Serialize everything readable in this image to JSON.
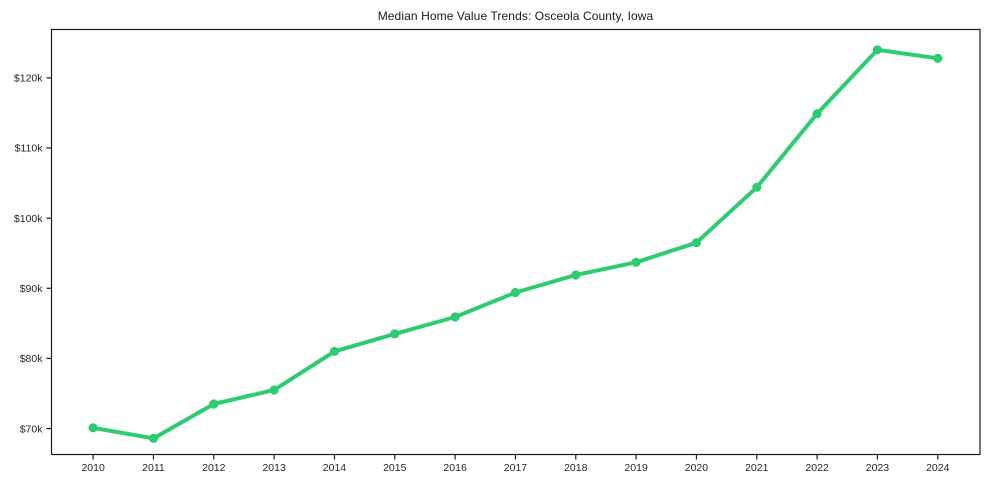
{
  "chart_data": {
    "type": "line",
    "title": "Median Home Value Trends: Osceola County, Iowa",
    "series_name": "median-home-value",
    "x": [
      2010,
      2011,
      2012,
      2013,
      2014,
      2015,
      2016,
      2017,
      2018,
      2019,
      2020,
      2021,
      2022,
      2023,
      2024
    ],
    "values": [
      70100,
      68600,
      73500,
      75500,
      81000,
      83500,
      85900,
      89400,
      91900,
      93700,
      96500,
      104400,
      114900,
      124000,
      122800
    ],
    "xlabel": "",
    "ylabel": "",
    "xlim": [
      2009.31,
      2024.7
    ],
    "ylim": [
      66300,
      126900
    ],
    "ytick_values": [
      70000,
      80000,
      90000,
      100000,
      110000,
      120000
    ],
    "ytick_labels": [
      "$70k",
      "$80k",
      "$90k",
      "$100k",
      "$110k",
      "$120k"
    ],
    "grid": false,
    "legend": "none",
    "line_color": "#2ecc71",
    "marker": "circle",
    "axis_color": "#1a1a1a",
    "tick_label_color": "#262626"
  }
}
